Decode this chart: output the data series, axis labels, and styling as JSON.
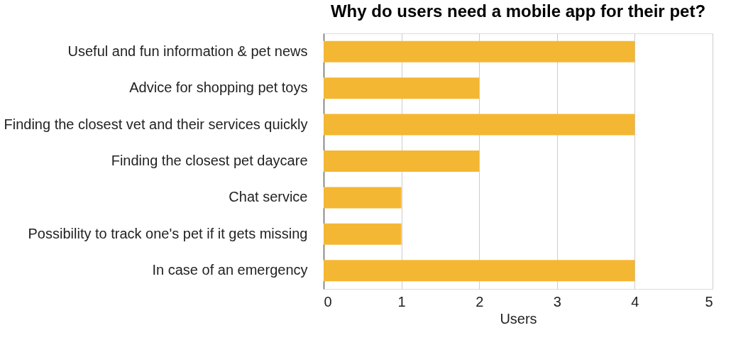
{
  "chart_data": {
    "type": "bar",
    "orientation": "horizontal",
    "title": "Why do users need a mobile app for their pet?",
    "xlabel": "Users",
    "categories": [
      "Useful and fun information & pet news",
      "Advice for shopping pet toys",
      "Finding the closest vet and their services quickly",
      "Finding the closest pet daycare",
      "Chat service",
      "Possibility to track one's pet if it gets missing",
      "In case of an emergency"
    ],
    "values": [
      4,
      2,
      4,
      2,
      1,
      1,
      4
    ],
    "color": "#f4b733",
    "xlim": [
      0,
      5
    ],
    "xticks": [
      0,
      1,
      2,
      3,
      4,
      5
    ],
    "grid": "x"
  }
}
